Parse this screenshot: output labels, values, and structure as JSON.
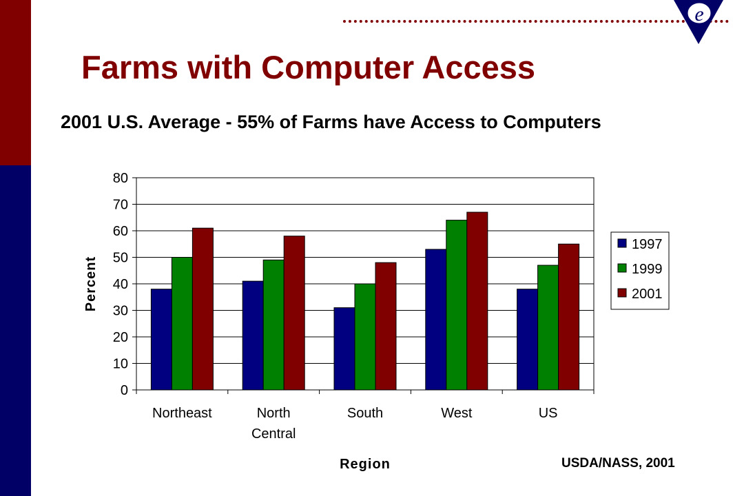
{
  "slide": {
    "title": "Farms with Computer Access",
    "subtitle": "2001 U.S. Average - 55% of Farms have Access to Computers",
    "source": "USDA/NASS, 2001",
    "logo_letter": "e"
  },
  "colors": {
    "accent_red": "#800000",
    "accent_navy": "#000066",
    "series_1997": "#000080",
    "series_1999": "#008000",
    "series_2001": "#800000"
  },
  "chart_data": {
    "type": "bar",
    "categories": [
      [
        "Northeast"
      ],
      [
        "North",
        "Central"
      ],
      [
        "South"
      ],
      [
        "West"
      ],
      [
        "US"
      ]
    ],
    "series": [
      {
        "name": "1997",
        "values": [
          38,
          41,
          31,
          53,
          38
        ],
        "color": "#000080"
      },
      {
        "name": "1999",
        "values": [
          50,
          49,
          40,
          64,
          47
        ],
        "color": "#008000"
      },
      {
        "name": "2001",
        "values": [
          61,
          58,
          48,
          67,
          55
        ],
        "color": "#800000"
      }
    ],
    "xlabel": "Region",
    "ylabel": "Percent",
    "ylim": [
      0,
      80
    ],
    "yticks": [
      0,
      10,
      20,
      30,
      40,
      50,
      60,
      70,
      80
    ],
    "grid": true,
    "legend_position": "right"
  }
}
